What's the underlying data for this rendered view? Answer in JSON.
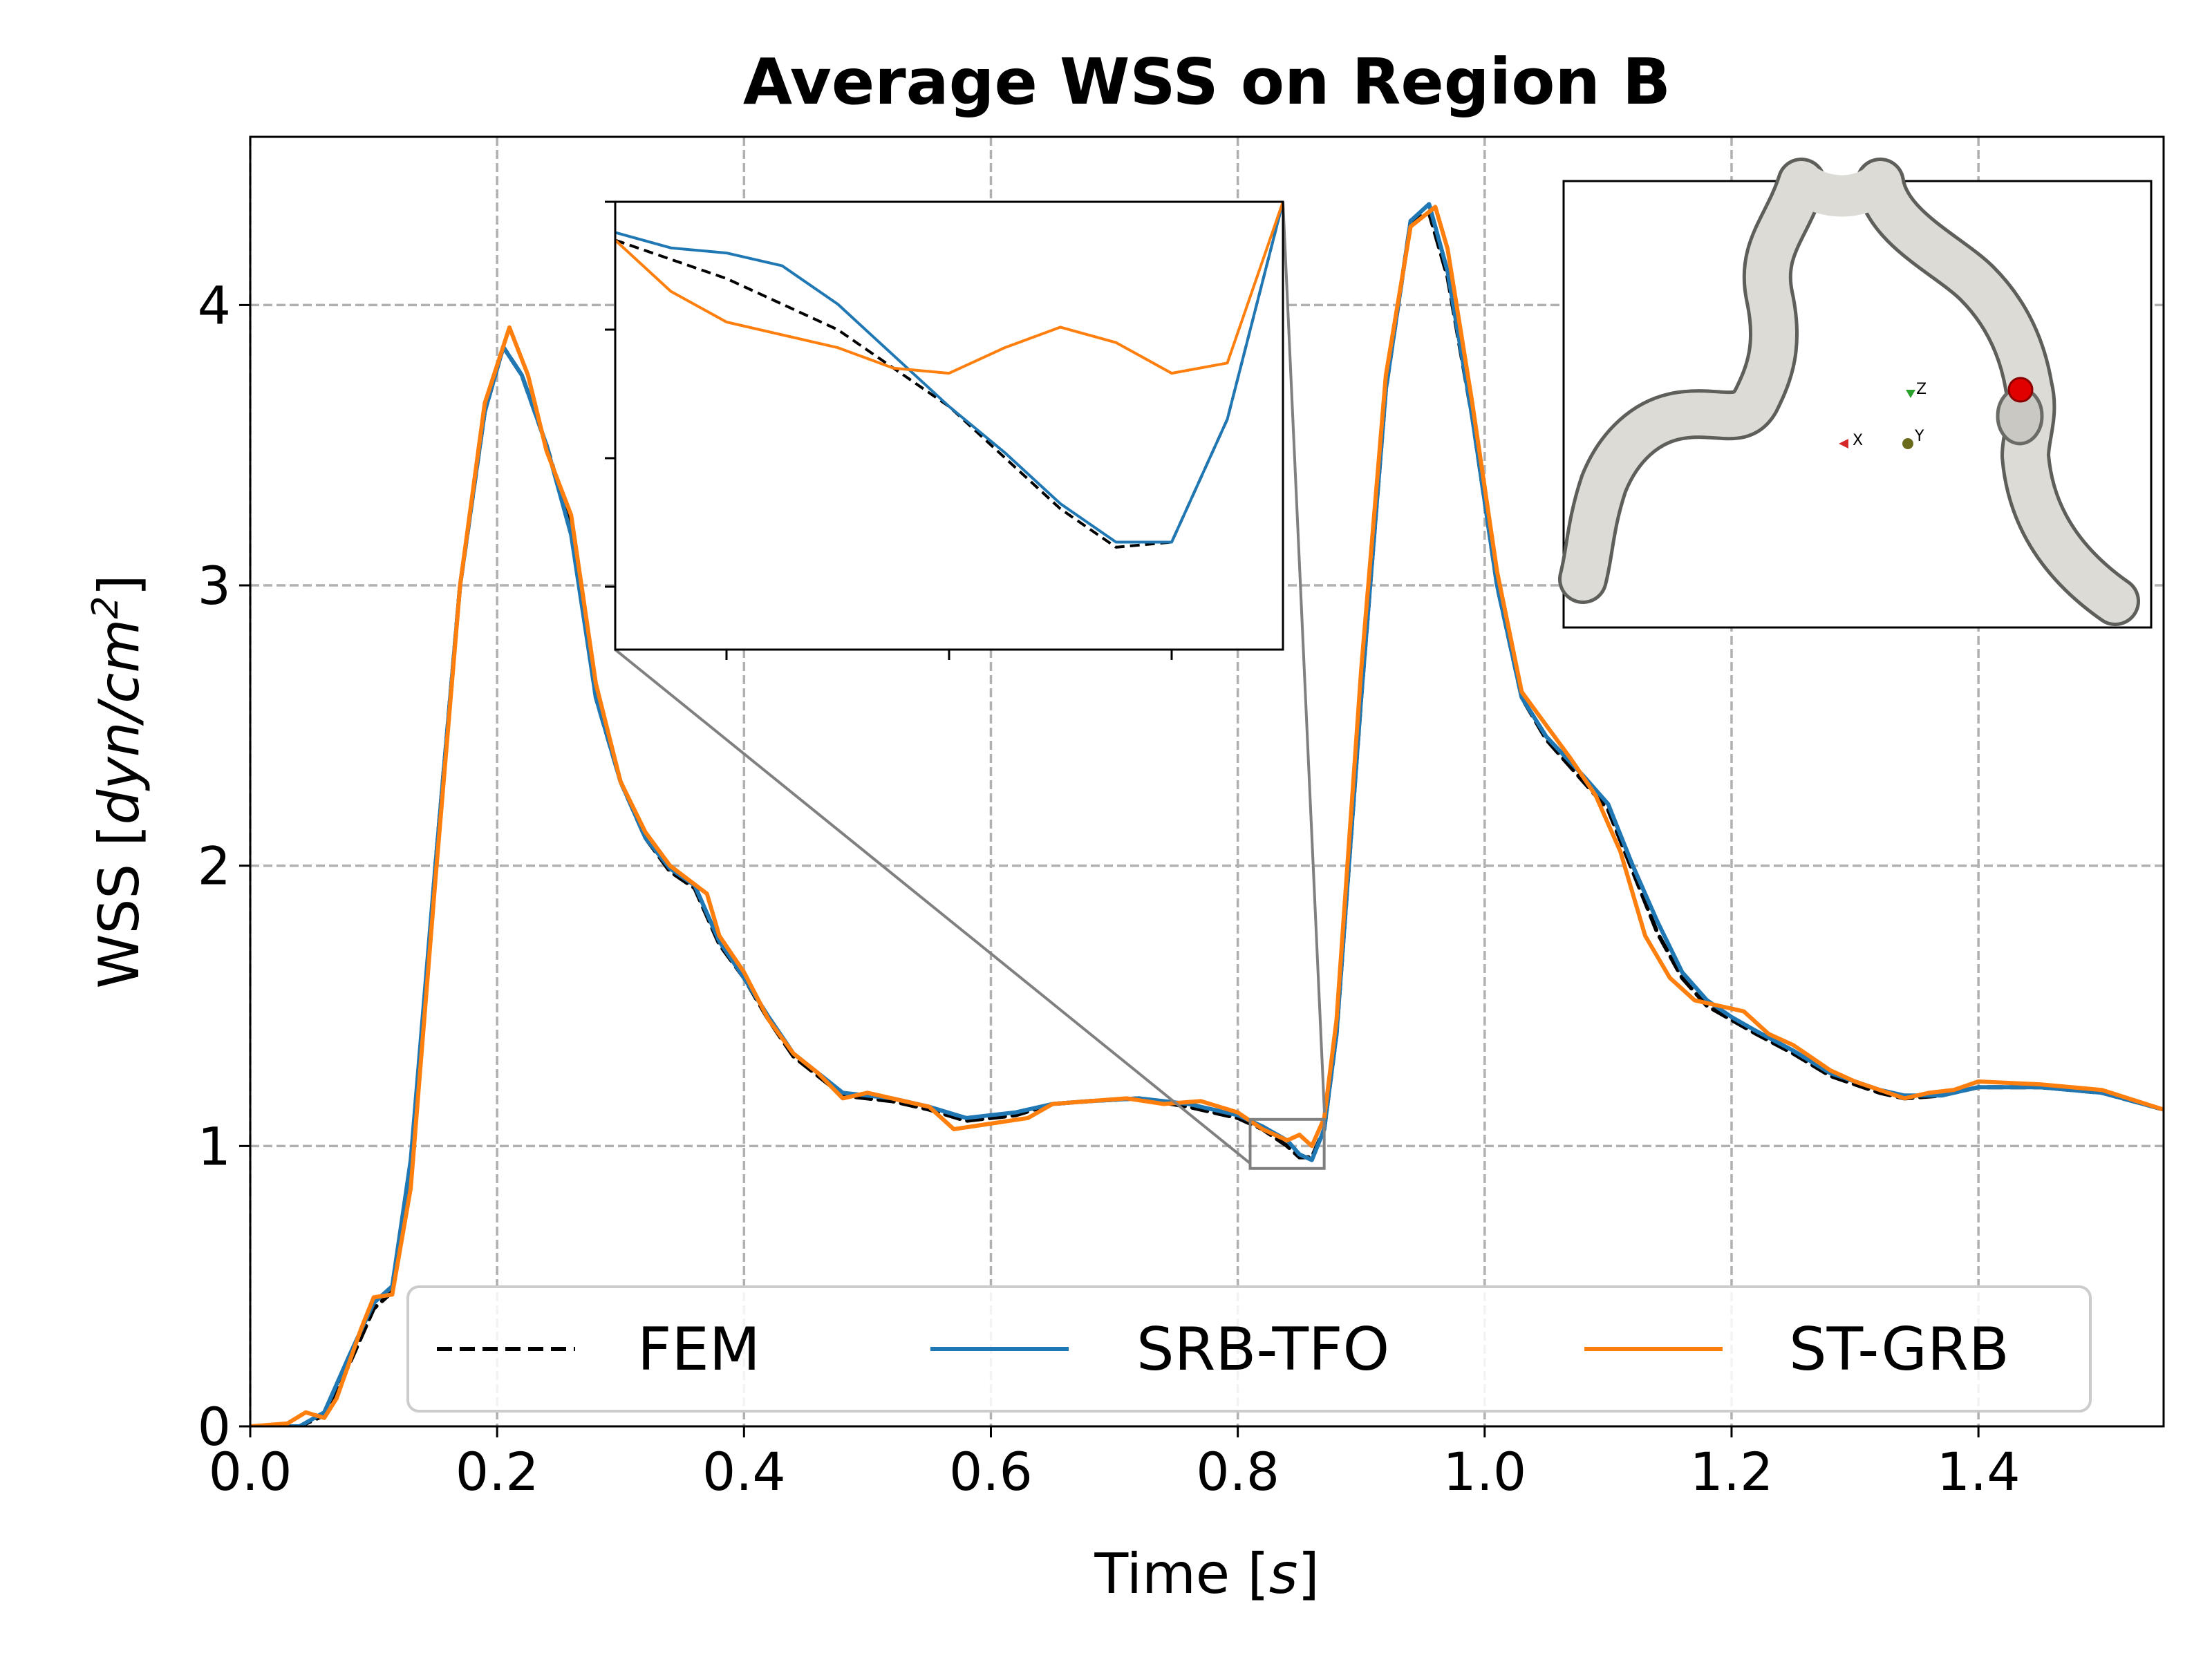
{
  "chart_data": {
    "type": "line",
    "title": "Average WSS on Region B",
    "xlabel": {
      "prefix": "Time [",
      "var": "s",
      "suffix": "]"
    },
    "ylabel": {
      "prefix": "WSS [",
      "var": "dyn/cm",
      "sup": "2",
      "suffix": "]"
    },
    "xlim": [
      0.0,
      1.55
    ],
    "ylim": [
      0,
      4.6
    ],
    "xticks": [
      0.0,
      0.2,
      0.4,
      0.6,
      0.8,
      1.0,
      1.2,
      1.4
    ],
    "xtick_labels": [
      "0.0",
      "0.2",
      "0.4",
      "0.6",
      "0.8",
      "1.0",
      "1.2",
      "1.4"
    ],
    "yticks": [
      0,
      1,
      2,
      3,
      4
    ],
    "ytick_labels": [
      "0",
      "1",
      "2",
      "3",
      "4"
    ],
    "grid": true,
    "legend_position": "bottom-right",
    "series": [
      {
        "name": "FEM",
        "color": "#000000",
        "style": "dashed",
        "points": [
          [
            0.0,
            0.0
          ],
          [
            0.04,
            0.0
          ],
          [
            0.06,
            0.04
          ],
          [
            0.08,
            0.22
          ],
          [
            0.1,
            0.42
          ],
          [
            0.115,
            0.48
          ],
          [
            0.13,
            0.9
          ],
          [
            0.15,
            2.0
          ],
          [
            0.17,
            3.0
          ],
          [
            0.19,
            3.62
          ],
          [
            0.205,
            3.85
          ],
          [
            0.22,
            3.75
          ],
          [
            0.24,
            3.5
          ],
          [
            0.26,
            3.2
          ],
          [
            0.28,
            2.6
          ],
          [
            0.3,
            2.3
          ],
          [
            0.32,
            2.1
          ],
          [
            0.34,
            1.98
          ],
          [
            0.36,
            1.92
          ],
          [
            0.38,
            1.72
          ],
          [
            0.4,
            1.6
          ],
          [
            0.42,
            1.45
          ],
          [
            0.44,
            1.32
          ],
          [
            0.46,
            1.25
          ],
          [
            0.48,
            1.18
          ],
          [
            0.5,
            1.17
          ],
          [
            0.52,
            1.16
          ],
          [
            0.55,
            1.13
          ],
          [
            0.58,
            1.09
          ],
          [
            0.6,
            1.1
          ],
          [
            0.62,
            1.11
          ],
          [
            0.65,
            1.15
          ],
          [
            0.68,
            1.16
          ],
          [
            0.72,
            1.17
          ],
          [
            0.76,
            1.14
          ],
          [
            0.8,
            1.1
          ],
          [
            0.82,
            1.06
          ],
          [
            0.84,
            1.0
          ],
          [
            0.85,
            0.96
          ],
          [
            0.86,
            0.96
          ],
          [
            0.87,
            1.06
          ],
          [
            0.88,
            1.4
          ],
          [
            0.9,
            2.6
          ],
          [
            0.92,
            3.7
          ],
          [
            0.94,
            4.3
          ],
          [
            0.955,
            4.33
          ],
          [
            0.97,
            4.1
          ],
          [
            0.99,
            3.6
          ],
          [
            1.01,
            3.0
          ],
          [
            1.03,
            2.6
          ],
          [
            1.05,
            2.45
          ],
          [
            1.08,
            2.3
          ],
          [
            1.1,
            2.2
          ],
          [
            1.12,
            1.98
          ],
          [
            1.14,
            1.76
          ],
          [
            1.16,
            1.6
          ],
          [
            1.18,
            1.5
          ],
          [
            1.2,
            1.45
          ],
          [
            1.22,
            1.4
          ],
          [
            1.25,
            1.33
          ],
          [
            1.28,
            1.25
          ],
          [
            1.3,
            1.22
          ],
          [
            1.32,
            1.19
          ],
          [
            1.34,
            1.17
          ],
          [
            1.37,
            1.18
          ],
          [
            1.4,
            1.21
          ],
          [
            1.45,
            1.21
          ],
          [
            1.5,
            1.19
          ],
          [
            1.55,
            1.13
          ]
        ]
      },
      {
        "name": "SRB-TFO",
        "color": "#1f77b4",
        "style": "solid",
        "points": [
          [
            0.0,
            0.0
          ],
          [
            0.04,
            0.0
          ],
          [
            0.06,
            0.05
          ],
          [
            0.08,
            0.25
          ],
          [
            0.1,
            0.44
          ],
          [
            0.115,
            0.5
          ],
          [
            0.13,
            0.95
          ],
          [
            0.15,
            2.0
          ],
          [
            0.17,
            3.0
          ],
          [
            0.19,
            3.62
          ],
          [
            0.205,
            3.85
          ],
          [
            0.22,
            3.75
          ],
          [
            0.24,
            3.5
          ],
          [
            0.26,
            3.18
          ],
          [
            0.28,
            2.6
          ],
          [
            0.3,
            2.3
          ],
          [
            0.32,
            2.1
          ],
          [
            0.34,
            1.99
          ],
          [
            0.36,
            1.93
          ],
          [
            0.38,
            1.73
          ],
          [
            0.4,
            1.6
          ],
          [
            0.42,
            1.46
          ],
          [
            0.44,
            1.33
          ],
          [
            0.46,
            1.26
          ],
          [
            0.48,
            1.19
          ],
          [
            0.5,
            1.18
          ],
          [
            0.52,
            1.17
          ],
          [
            0.55,
            1.14
          ],
          [
            0.58,
            1.1
          ],
          [
            0.6,
            1.11
          ],
          [
            0.62,
            1.12
          ],
          [
            0.65,
            1.15
          ],
          [
            0.68,
            1.16
          ],
          [
            0.72,
            1.17
          ],
          [
            0.76,
            1.15
          ],
          [
            0.8,
            1.11
          ],
          [
            0.82,
            1.07
          ],
          [
            0.84,
            1.02
          ],
          [
            0.85,
            0.97
          ],
          [
            0.86,
            0.95
          ],
          [
            0.87,
            1.06
          ],
          [
            0.88,
            1.4
          ],
          [
            0.9,
            2.6
          ],
          [
            0.92,
            3.7
          ],
          [
            0.94,
            4.3
          ],
          [
            0.955,
            4.36
          ],
          [
            0.97,
            4.12
          ],
          [
            0.99,
            3.6
          ],
          [
            1.01,
            3.0
          ],
          [
            1.03,
            2.6
          ],
          [
            1.05,
            2.46
          ],
          [
            1.08,
            2.32
          ],
          [
            1.1,
            2.22
          ],
          [
            1.12,
            2.0
          ],
          [
            1.14,
            1.8
          ],
          [
            1.16,
            1.62
          ],
          [
            1.18,
            1.52
          ],
          [
            1.2,
            1.46
          ],
          [
            1.22,
            1.41
          ],
          [
            1.25,
            1.34
          ],
          [
            1.28,
            1.26
          ],
          [
            1.3,
            1.23
          ],
          [
            1.32,
            1.2
          ],
          [
            1.34,
            1.18
          ],
          [
            1.37,
            1.18
          ],
          [
            1.4,
            1.21
          ],
          [
            1.45,
            1.21
          ],
          [
            1.5,
            1.19
          ],
          [
            1.55,
            1.13
          ]
        ]
      },
      {
        "name": "ST-GRB",
        "color": "#ff7f0e",
        "style": "solid",
        "points": [
          [
            0.0,
            0.0
          ],
          [
            0.03,
            0.01
          ],
          [
            0.045,
            0.05
          ],
          [
            0.06,
            0.03
          ],
          [
            0.07,
            0.1
          ],
          [
            0.09,
            0.35
          ],
          [
            0.1,
            0.46
          ],
          [
            0.115,
            0.47
          ],
          [
            0.13,
            0.85
          ],
          [
            0.15,
            1.95
          ],
          [
            0.17,
            3.0
          ],
          [
            0.19,
            3.65
          ],
          [
            0.21,
            3.92
          ],
          [
            0.225,
            3.75
          ],
          [
            0.24,
            3.48
          ],
          [
            0.26,
            3.25
          ],
          [
            0.28,
            2.65
          ],
          [
            0.3,
            2.3
          ],
          [
            0.32,
            2.12
          ],
          [
            0.34,
            2.0
          ],
          [
            0.355,
            1.95
          ],
          [
            0.37,
            1.9
          ],
          [
            0.38,
            1.75
          ],
          [
            0.4,
            1.62
          ],
          [
            0.42,
            1.45
          ],
          [
            0.44,
            1.33
          ],
          [
            0.46,
            1.26
          ],
          [
            0.48,
            1.17
          ],
          [
            0.5,
            1.19
          ],
          [
            0.52,
            1.17
          ],
          [
            0.55,
            1.14
          ],
          [
            0.57,
            1.06
          ],
          [
            0.6,
            1.08
          ],
          [
            0.63,
            1.1
          ],
          [
            0.65,
            1.15
          ],
          [
            0.68,
            1.16
          ],
          [
            0.71,
            1.17
          ],
          [
            0.74,
            1.15
          ],
          [
            0.77,
            1.16
          ],
          [
            0.8,
            1.12
          ],
          [
            0.82,
            1.06
          ],
          [
            0.84,
            1.02
          ],
          [
            0.85,
            1.04
          ],
          [
            0.86,
            1.0
          ],
          [
            0.87,
            1.1
          ],
          [
            0.88,
            1.45
          ],
          [
            0.9,
            2.7
          ],
          [
            0.92,
            3.75
          ],
          [
            0.94,
            4.28
          ],
          [
            0.96,
            4.35
          ],
          [
            0.97,
            4.2
          ],
          [
            0.99,
            3.65
          ],
          [
            1.01,
            3.05
          ],
          [
            1.03,
            2.62
          ],
          [
            1.05,
            2.5
          ],
          [
            1.07,
            2.38
          ],
          [
            1.09,
            2.25
          ],
          [
            1.11,
            2.05
          ],
          [
            1.13,
            1.75
          ],
          [
            1.15,
            1.6
          ],
          [
            1.17,
            1.52
          ],
          [
            1.19,
            1.5
          ],
          [
            1.21,
            1.48
          ],
          [
            1.23,
            1.4
          ],
          [
            1.25,
            1.36
          ],
          [
            1.28,
            1.27
          ],
          [
            1.3,
            1.23
          ],
          [
            1.32,
            1.2
          ],
          [
            1.34,
            1.17
          ],
          [
            1.36,
            1.19
          ],
          [
            1.38,
            1.2
          ],
          [
            1.4,
            1.23
          ],
          [
            1.45,
            1.22
          ],
          [
            1.5,
            1.2
          ],
          [
            1.55,
            1.13
          ]
        ]
      }
    ]
  },
  "inset_zoom": {
    "xlim": [
      0.81,
      0.87
    ],
    "ylim": [
      0.92,
      1.095
    ],
    "series": [
      {
        "name": "FEM",
        "color": "#000000",
        "style": "dashed",
        "points": [
          [
            0.81,
            1.08
          ],
          [
            0.82,
            1.065
          ],
          [
            0.83,
            1.045
          ],
          [
            0.84,
            1.015
          ],
          [
            0.845,
            0.995
          ],
          [
            0.85,
            0.975
          ],
          [
            0.855,
            0.96
          ],
          [
            0.86,
            0.962
          ],
          [
            0.865,
            1.01
          ],
          [
            0.87,
            1.095
          ]
        ]
      },
      {
        "name": "SRB-TFO",
        "color": "#1f77b4",
        "style": "solid",
        "points": [
          [
            0.81,
            1.083
          ],
          [
            0.815,
            1.077
          ],
          [
            0.82,
            1.075
          ],
          [
            0.825,
            1.07
          ],
          [
            0.83,
            1.055
          ],
          [
            0.835,
            1.035
          ],
          [
            0.84,
            1.015
          ],
          [
            0.845,
            0.997
          ],
          [
            0.85,
            0.977
          ],
          [
            0.855,
            0.962
          ],
          [
            0.86,
            0.962
          ],
          [
            0.865,
            1.01
          ],
          [
            0.87,
            1.095
          ]
        ]
      },
      {
        "name": "ST-GRB",
        "color": "#ff7f0e",
        "style": "solid",
        "points": [
          [
            0.81,
            1.08
          ],
          [
            0.815,
            1.06
          ],
          [
            0.82,
            1.048
          ],
          [
            0.83,
            1.038
          ],
          [
            0.835,
            1.03
          ],
          [
            0.84,
            1.028
          ],
          [
            0.845,
            1.038
          ],
          [
            0.85,
            1.046
          ],
          [
            0.855,
            1.04
          ],
          [
            0.86,
            1.028
          ],
          [
            0.865,
            1.032
          ],
          [
            0.87,
            1.095
          ]
        ]
      }
    ]
  },
  "orientation_axes": {
    "z": "Z",
    "x": "X",
    "y": "Y"
  }
}
